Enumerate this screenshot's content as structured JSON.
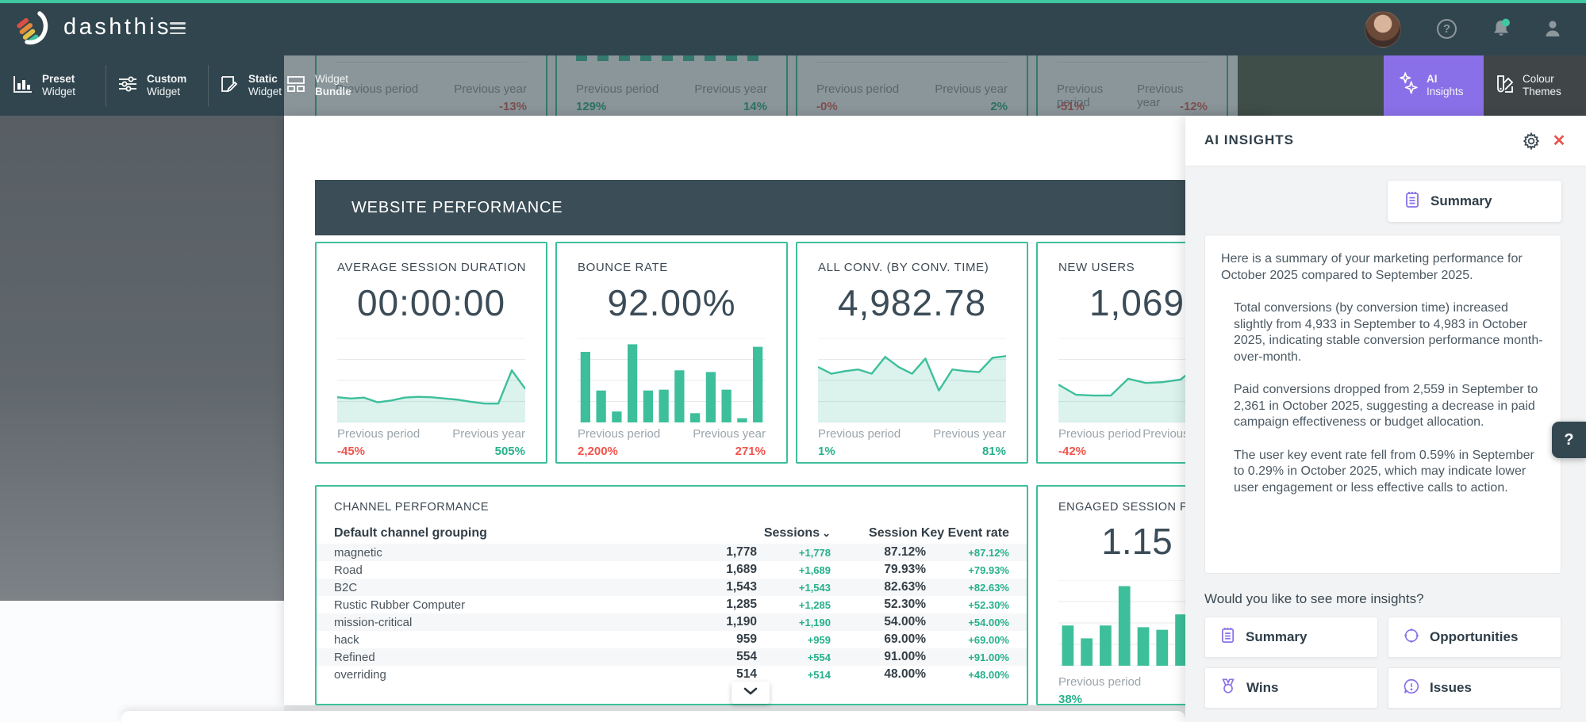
{
  "colors": {
    "accent": "#3dbf9b",
    "negative_red": "#f0544c",
    "positive_green": "#27b08b",
    "purple": "#8a70e8",
    "topbar": "#31454e"
  },
  "topbar": {
    "brand": "dashthis",
    "help_glyph": "?"
  },
  "toolbar": {
    "buttons": [
      {
        "line1": "Preset",
        "line2": "Widget"
      },
      {
        "line1": "Custom",
        "line2": "Widget"
      },
      {
        "line1": "Static",
        "line2": "Widget"
      },
      {
        "line1": "Widget",
        "line2": "Bundle"
      }
    ],
    "ai_insights": {
      "line1": "AI",
      "line2": "Insights"
    },
    "colour_themes": {
      "line1": "Colour",
      "line2": "Themes"
    }
  },
  "scrolled_widgets": [
    {
      "prev_period_label": "Previous period",
      "prev_year_label": "Previous year",
      "prev_period_value": "",
      "prev_period_color": "#e2635c",
      "prev_year_value": "-13%",
      "prev_year_color": "#e2635c"
    },
    {
      "prev_period_label": "Previous period",
      "prev_year_label": "Previous year",
      "prev_period_value": "129%",
      "prev_period_color": "#2fae8c",
      "prev_year_value": "14%",
      "prev_year_color": "#2fae8c"
    },
    {
      "prev_period_label": "Previous period",
      "prev_year_label": "Previous year",
      "prev_period_value": "-0%",
      "prev_period_color": "#e2635c",
      "prev_year_value": "2%",
      "prev_year_color": "#2fae8c"
    },
    {
      "prev_period_label": "Previous period",
      "prev_year_label": "Previous year",
      "prev_period_value": "-51%",
      "prev_period_color": "#e2635c",
      "prev_year_value": "-12%",
      "prev_year_color": "#e2635c"
    }
  ],
  "report": {
    "section_title": "WEBSITE PERFORMANCE",
    "widgets": [
      {
        "title": "AVERAGE SESSION DURATION",
        "value": "00:00:00",
        "prev_period_label": "Previous period",
        "prev_period_value": "-45%",
        "prev_period_color": "#f0544c",
        "prev_year_label": "Previous year",
        "prev_year_value": "505%",
        "prev_year_color": "#27b08b"
      },
      {
        "title": "BOUNCE RATE",
        "value": "92.00%",
        "prev_period_label": "Previous period",
        "prev_period_value": "2,200%",
        "prev_period_color": "#f0544c",
        "prev_year_label": "Previous year",
        "prev_year_value": "271%",
        "prev_year_color": "#f0544c"
      },
      {
        "title": "ALL CONV. (BY CONV. TIME)",
        "value": "4,982.78",
        "prev_period_label": "Previous period",
        "prev_period_value": "1%",
        "prev_period_color": "#27b08b",
        "prev_year_label": "Previous year",
        "prev_year_value": "81%",
        "prev_year_color": "#27b08b"
      },
      {
        "title": "NEW USERS",
        "value": "1,069",
        "prev_period_label": "Previous period",
        "prev_period_value": "-42%",
        "prev_period_color": "#f0544c",
        "prev_year_label": "Previous year",
        "prev_year_value": "",
        "prev_year_color": "#27b08b"
      }
    ],
    "table": {
      "title": "CHANNEL PERFORMANCE",
      "dimension_header": "Default channel grouping",
      "sessions_header": "Sessions",
      "sort_glyph": "⌄",
      "rate_header": "Session Key Event rate",
      "rows": [
        {
          "name": "magnetic",
          "sessions": "1,778",
          "sessions_delta": "+1,778",
          "rate": "87.12%",
          "rate_delta": "+87.12%"
        },
        {
          "name": "Road",
          "sessions": "1,689",
          "sessions_delta": "+1,689",
          "rate": "79.93%",
          "rate_delta": "+79.93%"
        },
        {
          "name": "B2C",
          "sessions": "1,543",
          "sessions_delta": "+1,543",
          "rate": "82.63%",
          "rate_delta": "+82.63%"
        },
        {
          "name": "Rustic Rubber Computer",
          "sessions": "1,285",
          "sessions_delta": "+1,285",
          "rate": "52.30%",
          "rate_delta": "+52.30%"
        },
        {
          "name": "mission-critical",
          "sessions": "1,190",
          "sessions_delta": "+1,190",
          "rate": "54.00%",
          "rate_delta": "+54.00%"
        },
        {
          "name": "hack",
          "sessions": "959",
          "sessions_delta": "+959",
          "rate": "69.00%",
          "rate_delta": "+69.00%"
        },
        {
          "name": "Refined",
          "sessions": "554",
          "sessions_delta": "+554",
          "rate": "91.00%",
          "rate_delta": "+91.00%"
        },
        {
          "name": "overriding",
          "sessions": "514",
          "sessions_delta": "+514",
          "rate": "48.00%",
          "rate_delta": "+48.00%"
        }
      ]
    },
    "engaged": {
      "title": "ENGAGED SESSION PER USER",
      "value": "1.15",
      "prev_period_label": "Previous period",
      "prev_period_value": "38%",
      "prev_period_color": "#27b08b"
    }
  },
  "ai_panel": {
    "title": "AI INSIGHTS",
    "close_glyph": "✕",
    "chip_label": "Summary",
    "message": {
      "p1": "Here is a summary of your marketing performance for October 2025 compared to September 2025.",
      "p2": "Total conversions (by conversion time) increased slightly from 4,933 in September to 4,983 in October 2025, indicating stable conversion performance month-over-month.",
      "p3": "Paid conversions dropped from 2,559 in September to 2,361 in October 2025, suggesting a decrease in paid campaign effectiveness or budget allocation.",
      "p4": "The user key event rate fell from 0.59% in September to 0.29% in October 2025, which may indicate lower user engagement or less effective calls to action."
    },
    "prompt": "Would you like to see more insights?",
    "buttons": [
      {
        "label": "Summary"
      },
      {
        "label": "Opportunities"
      },
      {
        "label": "Wins"
      },
      {
        "label": "Issues"
      }
    ]
  },
  "help_fab_glyph": "?",
  "chart_data": [
    {
      "id": "avg-session-duration-spark",
      "type": "area",
      "title": "AVERAGE SESSION DURATION",
      "current_value": "00:00:00",
      "note": "sparkline, no axis labels shown; values are relative heights 0-1",
      "values": [
        0.3,
        0.285,
        0.295,
        0.24,
        0.26,
        0.295,
        0.305,
        0.3,
        0.285,
        0.27,
        0.245,
        0.225,
        0.225,
        0.62,
        0.4
      ],
      "color": "#3dbf9b",
      "fill": "rgba(61,191,155,0.18)",
      "gridlines": 4
    },
    {
      "id": "bounce-rate-bars",
      "type": "bar",
      "title": "BOUNCE RATE",
      "current_value": "92.00%",
      "note": "12 bars, no axis labels shown; values are relative heights 0-1",
      "values": [
        0.84,
        0.38,
        0.13,
        0.93,
        0.38,
        0.39,
        0.62,
        0.11,
        0.6,
        0.39,
        0.05,
        0.9
      ],
      "color": "#3dbf9b",
      "gridlines": 4
    },
    {
      "id": "all-conv-spark",
      "type": "area",
      "title": "ALL CONV. (BY CONV. TIME)",
      "current_value": "4,982.78",
      "note": "sparkline, no axis labels shown; values are relative heights 0-1",
      "values": [
        0.66,
        0.58,
        0.61,
        0.63,
        0.58,
        0.78,
        0.66,
        0.58,
        0.76,
        0.38,
        0.63,
        0.61,
        0.6,
        0.77,
        0.79
      ],
      "color": "#3dbf9b",
      "fill": "rgba(61,191,155,0.18)",
      "gridlines": 4
    },
    {
      "id": "new-users-spark",
      "type": "area",
      "title": "NEW USERS",
      "current_value": "1,069",
      "note": "sparkline clipped by AI panel; values are relative heights 0-1",
      "values": [
        0.45,
        0.33,
        0.32,
        0.32,
        0.52,
        0.47,
        0.48,
        0.51,
        0.68,
        0.88
      ],
      "color": "#3dbf9b",
      "fill": "rgba(61,191,155,0.18)",
      "gridlines": 4
    },
    {
      "id": "engaged-bars",
      "type": "bar",
      "title": "ENGAGED SESSION PER USER",
      "current_value": "1.15",
      "note": "bars clipped by AI panel; values are relative heights 0-1",
      "values": [
        0.47,
        0.32,
        0.47,
        0.93,
        0.45,
        0.42,
        0.6,
        0.43,
        0.55
      ],
      "color": "#3dbf9b",
      "gridlines": 4
    }
  ]
}
